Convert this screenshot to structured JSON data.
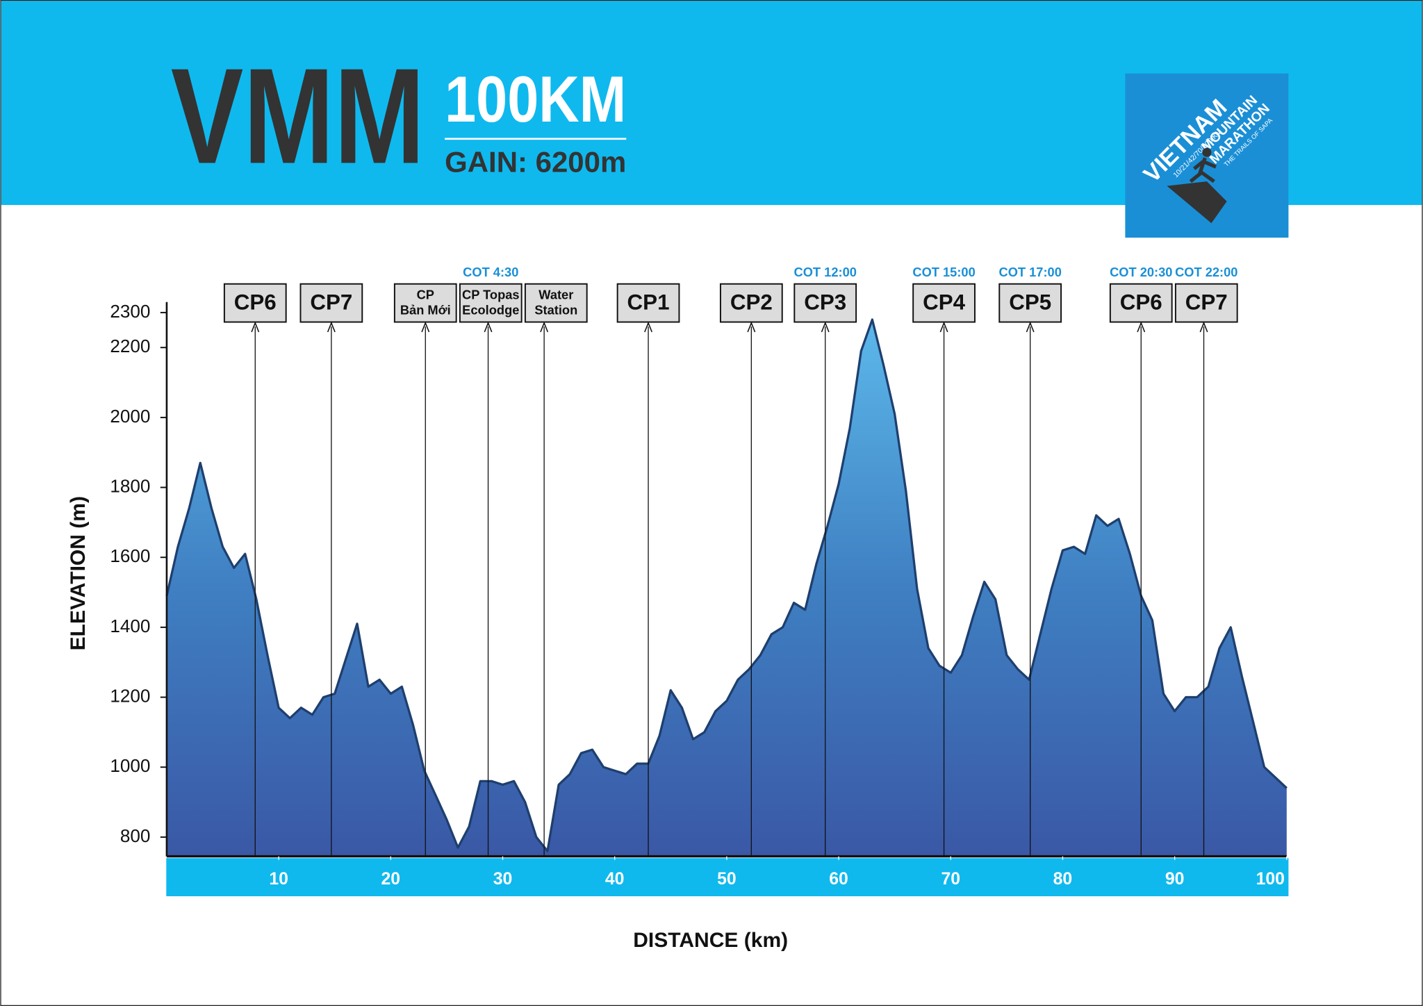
{
  "chart_data": {
    "type": "area",
    "title": "VMM",
    "subtitle": "100KM",
    "gain": "GAIN: 6200m",
    "logo": [
      "VIETNAM",
      "MOUNTAIN",
      "MARATHON",
      "10/21/42/70/100 KM",
      "THE TRAILS OF SAPA"
    ],
    "x_label": "DISTANCE (km)",
    "y_label": "ELEVATION (m)",
    "x": [
      0,
      1,
      2,
      3,
      4,
      5,
      6,
      7,
      8,
      9,
      10,
      11,
      12,
      13,
      14,
      15,
      16,
      17,
      18,
      19,
      20,
      21,
      22,
      23,
      24,
      25,
      26,
      27,
      28,
      29,
      30,
      31,
      32,
      33,
      34,
      35,
      36,
      37,
      38,
      39,
      40,
      41,
      42,
      43,
      44,
      45,
      46,
      47,
      48,
      49,
      50,
      51,
      52,
      53,
      54,
      55,
      56,
      57,
      58,
      59,
      60,
      61,
      62,
      63,
      64,
      65,
      66,
      67,
      68,
      69,
      70,
      71,
      72,
      73,
      74,
      75,
      76,
      77,
      78,
      79,
      80,
      81,
      82,
      83,
      84,
      85,
      86,
      87,
      88,
      89,
      90,
      91,
      92,
      93,
      94,
      95,
      96,
      97,
      98,
      99,
      100
    ],
    "values": [
      1490,
      1630,
      1740,
      1870,
      1740,
      1630,
      1570,
      1610,
      1480,
      1320,
      1170,
      1140,
      1170,
      1150,
      1200,
      1210,
      1310,
      1410,
      1230,
      1250,
      1210,
      1230,
      1120,
      990,
      920,
      850,
      770,
      830,
      960,
      960,
      950,
      960,
      900,
      800,
      760,
      950,
      980,
      1040,
      1050,
      1000,
      990,
      980,
      1010,
      1010,
      1090,
      1220,
      1170,
      1080,
      1100,
      1160,
      1190,
      1250,
      1280,
      1320,
      1380,
      1400,
      1470,
      1450,
      1580,
      1690,
      1810,
      1970,
      2190,
      2280,
      2150,
      2010,
      1790,
      1510,
      1340,
      1290,
      1270,
      1320,
      1430,
      1530,
      1480,
      1320,
      1280,
      1250,
      1380,
      1510,
      1620,
      1630,
      1610,
      1720,
      1690,
      1710,
      1610,
      1490,
      1420,
      1210,
      1160,
      1200,
      1200,
      1230,
      1340,
      1400,
      1260,
      1130,
      1000,
      970,
      940
    ],
    "color": "#1e3f6e",
    "xlim": [
      0,
      100
    ],
    "ylim": [
      745,
      2330
    ],
    "xticks": [
      10,
      20,
      30,
      40,
      50,
      60,
      70,
      80,
      90,
      100
    ],
    "yticks": [
      800,
      1000,
      1200,
      1400,
      1600,
      1800,
      2000,
      2200,
      2300
    ],
    "checkpoints": [
      {
        "label": [
          "CP6"
        ],
        "x": 7.9
      },
      {
        "label": [
          "CP7"
        ],
        "x": 14.7
      },
      {
        "label": [
          "CP",
          "Bản Mới"
        ],
        "x": 23.1
      },
      {
        "label": [
          "CP Topas",
          "Ecolodge"
        ],
        "x": 28.7,
        "cot": "COT 4:30"
      },
      {
        "label": [
          "Water",
          "Station"
        ],
        "x": 33.7
      },
      {
        "label": [
          "CP1"
        ],
        "x": 43.0
      },
      {
        "label": [
          "CP2"
        ],
        "x": 52.2
      },
      {
        "label": [
          "CP3"
        ],
        "x": 58.8,
        "cot": "COT 12:00"
      },
      {
        "label": [
          "CP4"
        ],
        "x": 69.4,
        "cot": "COT 15:00"
      },
      {
        "label": [
          "CP5"
        ],
        "x": 77.1,
        "cot": "COT 17:00"
      },
      {
        "label": [
          "CP6"
        ],
        "x": 87.0,
        "cot": "COT 20:30"
      },
      {
        "label": [
          "CP7"
        ],
        "x": 92.6,
        "cot": "COT 22:00"
      }
    ]
  }
}
